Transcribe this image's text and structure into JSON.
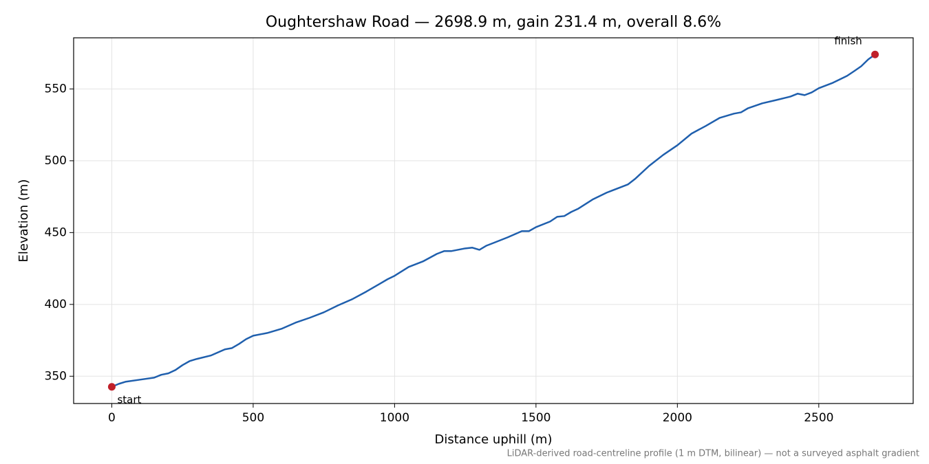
{
  "chart_data": {
    "type": "line",
    "title": "Oughtershaw Road — 2698.9 m, gain 231.4 m, overall 8.6%",
    "x_label": "Distance uphill (m)",
    "y_label": "Elevation (m)",
    "footnote": "LiDAR-derived road-centreline profile (1 m DTM, bilinear) — not a surveyed asphalt gradient",
    "x": [
      0,
      25,
      50,
      100,
      150,
      175,
      200,
      225,
      250,
      275,
      300,
      350,
      400,
      425,
      450,
      475,
      500,
      550,
      600,
      650,
      700,
      750,
      800,
      850,
      900,
      950,
      975,
      1000,
      1050,
      1100,
      1150,
      1175,
      1200,
      1250,
      1275,
      1300,
      1325,
      1350,
      1400,
      1450,
      1475,
      1500,
      1550,
      1575,
      1600,
      1625,
      1650,
      1700,
      1750,
      1800,
      1825,
      1850,
      1900,
      1950,
      2000,
      2050,
      2100,
      2150,
      2200,
      2225,
      2250,
      2300,
      2350,
      2400,
      2425,
      2450,
      2475,
      2500,
      2550,
      2600,
      2625,
      2650,
      2675,
      2698.9
    ],
    "series": [
      {
        "color": "#1f5fad",
        "values": [
          342.6,
          344.7,
          346.2,
          347.6,
          349,
          351,
          352,
          354.3,
          357.7,
          360.5,
          362,
          364.4,
          368.7,
          369.6,
          372.5,
          375.8,
          378.2,
          380.1,
          383,
          387.3,
          390.7,
          394.5,
          399.3,
          403.6,
          408.9,
          414.6,
          417.5,
          419.9,
          426.1,
          429.9,
          435.2,
          437.1,
          437.1,
          439,
          439.5,
          438,
          440.9,
          442.8,
          446.7,
          451,
          451,
          453.8,
          457.7,
          461,
          461.5,
          464.4,
          466.7,
          473,
          477.8,
          481.6,
          483.5,
          487.3,
          496.4,
          504.1,
          510.8,
          518.9,
          524.2,
          529.9,
          532.8,
          533.7,
          536.6,
          540,
          542.3,
          544.7,
          546.7,
          545.7,
          547.6,
          550.5,
          554.3,
          559.1,
          562.4,
          565.8,
          570.6,
          574.0
        ]
      }
    ],
    "markers": [
      {
        "label": "start",
        "x": 0,
        "y": 342.6,
        "color": "#c0202a"
      },
      {
        "label": "finish",
        "x": 2698.9,
        "y": 574.0,
        "color": "#c0202a"
      }
    ],
    "xlim": [
      -134.9,
      2833.8
    ],
    "ylim": [
      331.0,
      585.6
    ],
    "xticks": [
      0,
      500,
      1000,
      1500,
      2000,
      2500
    ],
    "yticks": [
      350,
      400,
      450,
      500,
      550
    ],
    "grid": true
  }
}
